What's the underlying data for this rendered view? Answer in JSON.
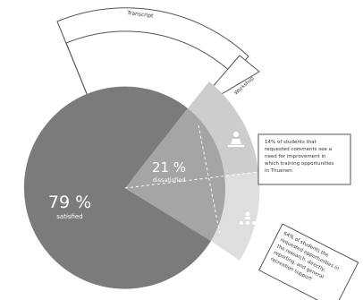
{
  "chart_data": {
    "type": "pie",
    "slices": [
      {
        "label": "satisfied",
        "value": 79,
        "display": "79 %",
        "color": "#7b7b7b"
      },
      {
        "label": "dissatisfied",
        "value": 21,
        "display": "21 %",
        "color": "#a5a5a5"
      }
    ],
    "breakdown": [
      {
        "text": "14% of students that requested comments see a need for improvement in which training opportunities in Thuenen",
        "color": "#cdcdcd"
      },
      {
        "text": "64% of students the requested opportunities in the research, directly, reporting, and general recreation support",
        "color": "#dedede"
      }
    ],
    "outer_labels": [
      "Transcript",
      "Workshop"
    ]
  },
  "icons": [
    "person-at-desk-icon",
    "group-meeting-icon"
  ]
}
